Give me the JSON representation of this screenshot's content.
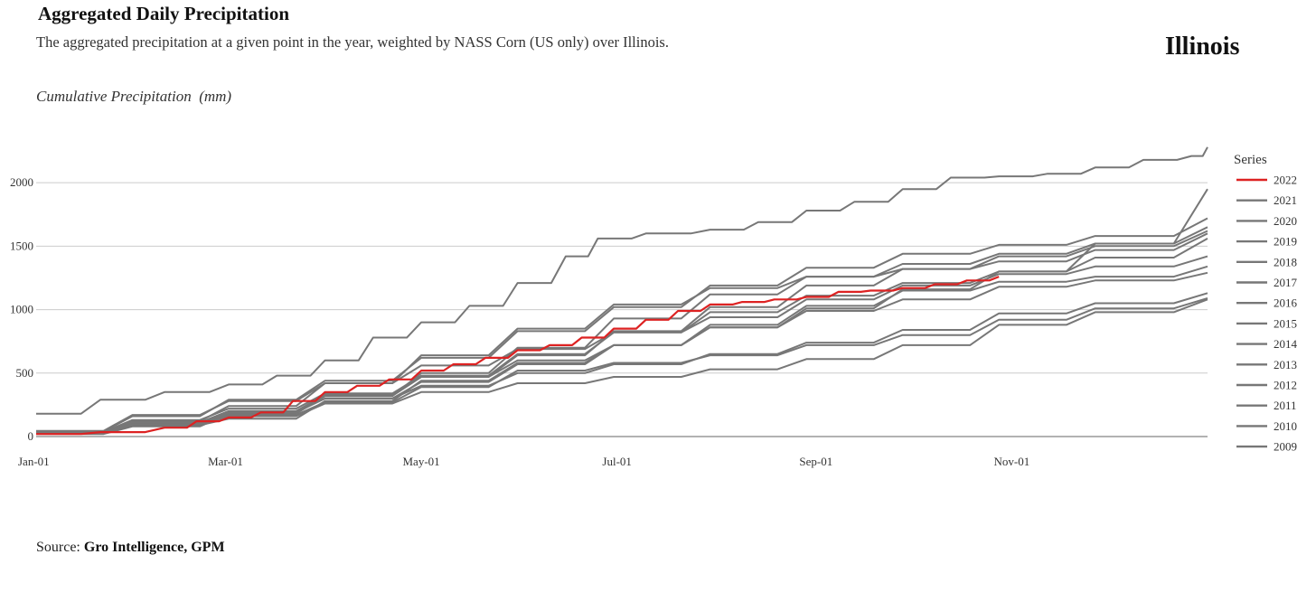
{
  "header": {
    "title": "Aggregated Daily Precipitation",
    "subtitle": "The aggregated precipitation at a given point in the year, weighted by NASS Corn (US only) over Illinois.",
    "region": "Illinois",
    "y_axis_label": "Cumulative Precipitation  (mm)"
  },
  "footer": {
    "source_prefix": "Source: ",
    "source_name": "Gro Intelligence, GPM"
  },
  "chart_data": {
    "type": "line",
    "title": "Aggregated Daily Precipitation",
    "ylabel": "Cumulative Precipitation  (mm)",
    "xlabel": "",
    "x_ticks": [
      "Jan-01",
      "Mar-01",
      "May-01",
      "Jul-01",
      "Sep-01",
      "Nov-01"
    ],
    "x_tick_days": [
      0,
      59,
      120,
      181,
      243,
      304
    ],
    "y_ticks": [
      0,
      500,
      1000,
      1500,
      2000
    ],
    "xlim": [
      0,
      365
    ],
    "ylim": [
      0,
      2300
    ],
    "grid": "horizontal",
    "legend_title": "Series",
    "legend_position": "right",
    "highlight_color": "#dd2222",
    "other_color": "#777777",
    "series": [
      {
        "name": "2022",
        "points": [
          [
            0,
            20
          ],
          [
            20,
            35
          ],
          [
            40,
            70
          ],
          [
            50,
            120
          ],
          [
            60,
            150
          ],
          [
            70,
            190
          ],
          [
            80,
            280
          ],
          [
            90,
            350
          ],
          [
            100,
            400
          ],
          [
            110,
            450
          ],
          [
            120,
            520
          ],
          [
            130,
            570
          ],
          [
            140,
            620
          ],
          [
            150,
            680
          ],
          [
            160,
            720
          ],
          [
            170,
            780
          ],
          [
            180,
            850
          ],
          [
            190,
            920
          ],
          [
            200,
            990
          ],
          [
            210,
            1040
          ],
          [
            220,
            1060
          ],
          [
            230,
            1080
          ],
          [
            240,
            1100
          ],
          [
            250,
            1140
          ],
          [
            260,
            1150
          ],
          [
            270,
            1170
          ],
          [
            280,
            1200
          ],
          [
            290,
            1230
          ],
          [
            300,
            1260
          ]
        ]
      },
      {
        "name": "2021",
        "points": [
          [
            0,
            25
          ],
          [
            30,
            90
          ],
          [
            60,
            140
          ],
          [
            90,
            280
          ],
          [
            120,
            440
          ],
          [
            150,
            580
          ],
          [
            180,
            720
          ],
          [
            210,
            860
          ],
          [
            240,
            990
          ],
          [
            270,
            1080
          ],
          [
            300,
            1180
          ],
          [
            330,
            1230
          ],
          [
            365,
            1290
          ]
        ]
      },
      {
        "name": "2020",
        "points": [
          [
            0,
            30
          ],
          [
            30,
            100
          ],
          [
            60,
            190
          ],
          [
            90,
            320
          ],
          [
            120,
            470
          ],
          [
            150,
            640
          ],
          [
            180,
            830
          ],
          [
            210,
            1020
          ],
          [
            240,
            1190
          ],
          [
            270,
            1320
          ],
          [
            300,
            1420
          ],
          [
            330,
            1500
          ],
          [
            365,
            1620
          ]
        ]
      },
      {
        "name": "2019",
        "points": [
          [
            0,
            40
          ],
          [
            30,
            160
          ],
          [
            60,
            290
          ],
          [
            90,
            440
          ],
          [
            120,
            620
          ],
          [
            150,
            830
          ],
          [
            180,
            1020
          ],
          [
            210,
            1190
          ],
          [
            240,
            1330
          ],
          [
            270,
            1440
          ],
          [
            300,
            1510
          ],
          [
            330,
            1580
          ],
          [
            365,
            1720
          ]
        ]
      },
      {
        "name": "2018",
        "points": [
          [
            0,
            25
          ],
          [
            30,
            90
          ],
          [
            60,
            170
          ],
          [
            90,
            270
          ],
          [
            120,
            390
          ],
          [
            150,
            520
          ],
          [
            180,
            580
          ],
          [
            210,
            640
          ],
          [
            240,
            720
          ],
          [
            270,
            800
          ],
          [
            300,
            920
          ],
          [
            330,
            1010
          ],
          [
            365,
            1090
          ]
        ]
      },
      {
        "name": "2017",
        "points": [
          [
            0,
            45
          ],
          [
            30,
            170
          ],
          [
            60,
            280
          ],
          [
            90,
            420
          ],
          [
            120,
            560
          ],
          [
            150,
            690
          ],
          [
            180,
            820
          ],
          [
            210,
            940
          ],
          [
            240,
            1080
          ],
          [
            270,
            1190
          ],
          [
            300,
            1280
          ],
          [
            330,
            1340
          ],
          [
            365,
            1420
          ]
        ]
      },
      {
        "name": "2016",
        "points": [
          [
            0,
            30
          ],
          [
            30,
            110
          ],
          [
            60,
            200
          ],
          [
            90,
            300
          ],
          [
            120,
            430
          ],
          [
            150,
            570
          ],
          [
            180,
            720
          ],
          [
            210,
            880
          ],
          [
            240,
            1030
          ],
          [
            270,
            1150
          ],
          [
            300,
            1220
          ],
          [
            330,
            1260
          ],
          [
            365,
            1340
          ]
        ]
      },
      {
        "name": "2015",
        "points": [
          [
            0,
            20
          ],
          [
            30,
            80
          ],
          [
            60,
            180
          ],
          [
            90,
            320
          ],
          [
            120,
            500
          ],
          [
            150,
            700
          ],
          [
            180,
            930
          ],
          [
            210,
            1120
          ],
          [
            240,
            1260
          ],
          [
            270,
            1360
          ],
          [
            300,
            1440
          ],
          [
            330,
            1520
          ],
          [
            365,
            1650
          ]
        ]
      },
      {
        "name": "2014",
        "points": [
          [
            0,
            35
          ],
          [
            30,
            130
          ],
          [
            60,
            220
          ],
          [
            90,
            340
          ],
          [
            120,
            480
          ],
          [
            150,
            650
          ],
          [
            180,
            820
          ],
          [
            210,
            980
          ],
          [
            240,
            1110
          ],
          [
            270,
            1210
          ],
          [
            300,
            1300
          ],
          [
            330,
            1410
          ],
          [
            365,
            1560
          ]
        ]
      },
      {
        "name": "2013",
        "points": [
          [
            0,
            30
          ],
          [
            30,
            120
          ],
          [
            60,
            240
          ],
          [
            90,
            420
          ],
          [
            120,
            640
          ],
          [
            150,
            850
          ],
          [
            180,
            1040
          ],
          [
            210,
            1170
          ],
          [
            240,
            1260
          ],
          [
            270,
            1320
          ],
          [
            300,
            1380
          ],
          [
            330,
            1470
          ],
          [
            365,
            1600
          ]
        ]
      },
      {
        "name": "2012",
        "points": [
          [
            0,
            25
          ],
          [
            30,
            90
          ],
          [
            60,
            160
          ],
          [
            90,
            260
          ],
          [
            120,
            350
          ],
          [
            150,
            420
          ],
          [
            180,
            470
          ],
          [
            210,
            530
          ],
          [
            240,
            610
          ],
          [
            270,
            720
          ],
          [
            300,
            880
          ],
          [
            330,
            980
          ],
          [
            365,
            1080
          ]
        ]
      },
      {
        "name": "2011",
        "points": [
          [
            0,
            180
          ],
          [
            20,
            290
          ],
          [
            40,
            350
          ],
          [
            60,
            410
          ],
          [
            75,
            480
          ],
          [
            90,
            600
          ],
          [
            105,
            780
          ],
          [
            120,
            900
          ],
          [
            135,
            1030
          ],
          [
            150,
            1210
          ],
          [
            165,
            1420
          ],
          [
            175,
            1560
          ],
          [
            190,
            1600
          ],
          [
            210,
            1630
          ],
          [
            225,
            1690
          ],
          [
            240,
            1780
          ],
          [
            255,
            1850
          ],
          [
            270,
            1950
          ],
          [
            285,
            2040
          ],
          [
            300,
            2050
          ],
          [
            315,
            2070
          ],
          [
            330,
            2120
          ],
          [
            345,
            2180
          ],
          [
            360,
            2210
          ],
          [
            365,
            2280
          ]
        ]
      },
      {
        "name": "2010",
        "points": [
          [
            0,
            30
          ],
          [
            30,
            110
          ],
          [
            60,
            200
          ],
          [
            90,
            330
          ],
          [
            120,
            470
          ],
          [
            150,
            600
          ],
          [
            180,
            720
          ],
          [
            210,
            860
          ],
          [
            240,
            1010
          ],
          [
            270,
            1160
          ],
          [
            300,
            1300
          ],
          [
            330,
            1520
          ],
          [
            365,
            1950
          ]
        ]
      },
      {
        "name": "2009",
        "points": [
          [
            0,
            25
          ],
          [
            30,
            95
          ],
          [
            60,
            190
          ],
          [
            90,
            300
          ],
          [
            120,
            400
          ],
          [
            150,
            500
          ],
          [
            180,
            570
          ],
          [
            210,
            650
          ],
          [
            240,
            740
          ],
          [
            270,
            840
          ],
          [
            300,
            970
          ],
          [
            330,
            1050
          ],
          [
            365,
            1130
          ]
        ]
      }
    ]
  }
}
